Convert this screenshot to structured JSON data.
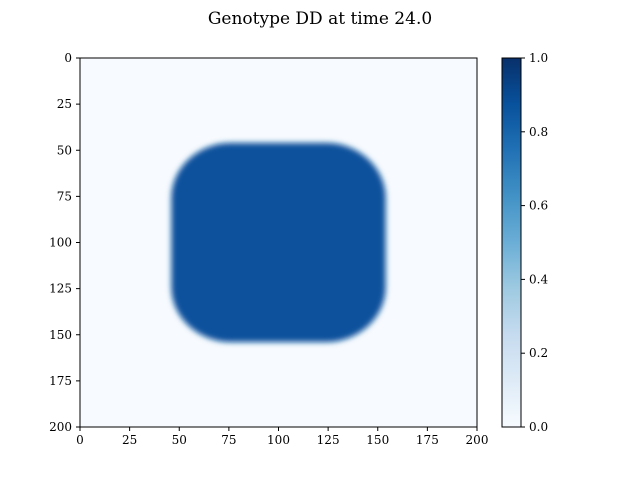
{
  "chart_data": {
    "type": "heatmap",
    "title": "Genotype DD at time 24.0",
    "xlabel": "",
    "ylabel": "",
    "grid": "rows 0-200, cols 0-200",
    "xlim": [
      0,
      200
    ],
    "ylim": [
      200,
      0
    ],
    "x_ticks": [
      "0",
      "25",
      "50",
      "75",
      "100",
      "125",
      "150",
      "175",
      "200"
    ],
    "y_ticks": [
      "0",
      "25",
      "50",
      "75",
      "100",
      "125",
      "150",
      "175",
      "200"
    ],
    "regions": [
      {
        "shape": "rounded-square",
        "x_range": [
          46,
          154
        ],
        "y_range": [
          46,
          154
        ],
        "corner_radius": 30,
        "value": 0.8,
        "background_value": 0.0
      }
    ],
    "colorbar": {
      "colormap": "Blues",
      "range": [
        0.0,
        1.0
      ],
      "ticks": [
        "0.0",
        "0.2",
        "0.4",
        "0.6",
        "0.8",
        "1.0"
      ]
    },
    "colors": {
      "background_cell": "#f7fbff",
      "fill_cell": "#08519c",
      "max_color": "#08306b"
    }
  }
}
